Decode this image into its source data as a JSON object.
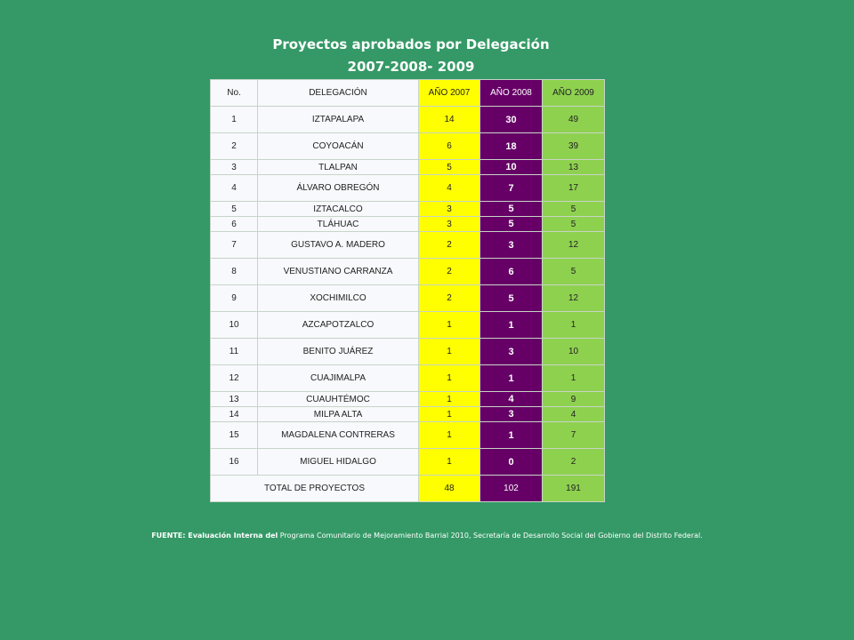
{
  "title": {
    "line1": "Proyectos aprobados por Delegación",
    "line2": "2007-2008- 2009"
  },
  "table": {
    "headers": {
      "no": "No.",
      "delegacion": "DELEGACIÓN",
      "y2007": "AÑO 2007",
      "y2008": "AÑO 2008",
      "y2009": "AÑO 2009"
    },
    "rows": [
      {
        "no": "1",
        "delegacion": "IZTAPALAPA",
        "y2007": "14",
        "y2008": "30",
        "y2009": "49"
      },
      {
        "no": "2",
        "delegacion": "COYOACÁN",
        "y2007": "6",
        "y2008": "18",
        "y2009": "39"
      },
      {
        "no": "3",
        "delegacion": "TLALPAN",
        "y2007": "5",
        "y2008": "10",
        "y2009": "13"
      },
      {
        "no": "4",
        "delegacion": "ÁLVARO OBREGÓN",
        "y2007": "4",
        "y2008": "7",
        "y2009": "17"
      },
      {
        "no": "5",
        "delegacion": "IZTACALCO",
        "y2007": "3",
        "y2008": "5",
        "y2009": "5"
      },
      {
        "no": "6",
        "delegacion": "TLÁHUAC",
        "y2007": "3",
        "y2008": "5",
        "y2009": "5"
      },
      {
        "no": "7",
        "delegacion": "GUSTAVO A. MADERO",
        "y2007": "2",
        "y2008": "3",
        "y2009": "12"
      },
      {
        "no": "8",
        "delegacion": "VENUSTIANO CARRANZA",
        "y2007": "2",
        "y2008": "6",
        "y2009": "5"
      },
      {
        "no": "9",
        "delegacion": "XOCHIMILCO",
        "y2007": "2",
        "y2008": "5",
        "y2009": "12"
      },
      {
        "no": "10",
        "delegacion": "AZCAPOTZALCO",
        "y2007": "1",
        "y2008": "1",
        "y2009": "1"
      },
      {
        "no": "11",
        "delegacion": "BENITO JUÁREZ",
        "y2007": "1",
        "y2008": "3",
        "y2009": "10"
      },
      {
        "no": "12",
        "delegacion": "CUAJIMALPA",
        "y2007": "1",
        "y2008": "1",
        "y2009": "1"
      },
      {
        "no": "13",
        "delegacion": "CUAUHTÉMOC",
        "y2007": "1",
        "y2008": "4",
        "y2009": "9"
      },
      {
        "no": "14",
        "delegacion": "MILPA ALTA",
        "y2007": "1",
        "y2008": "3",
        "y2009": "4"
      },
      {
        "no": "15",
        "delegacion": "MAGDALENA CONTRERAS",
        "y2007": "1",
        "y2008": "1",
        "y2009": "7"
      },
      {
        "no": "16",
        "delegacion": "MIGUEL HIDALGO",
        "y2007": "1",
        "y2008": "0",
        "y2009": "2"
      }
    ],
    "total": {
      "label": "TOTAL DE PROYECTOS",
      "y2007": "48",
      "y2008": "102",
      "y2009": "191"
    }
  },
  "source": {
    "lead": "FUENTE: Evaluación Interna del",
    "text": " Programa Comunitario de Mejoramiento Barrial 2010, Secretaría de Desarrollo Social del Gobierno del Distrito Federal."
  },
  "colors": {
    "background": "#349966",
    "col2007": "#ffff00",
    "col2008": "#660066",
    "col2009": "#8ed14f"
  }
}
